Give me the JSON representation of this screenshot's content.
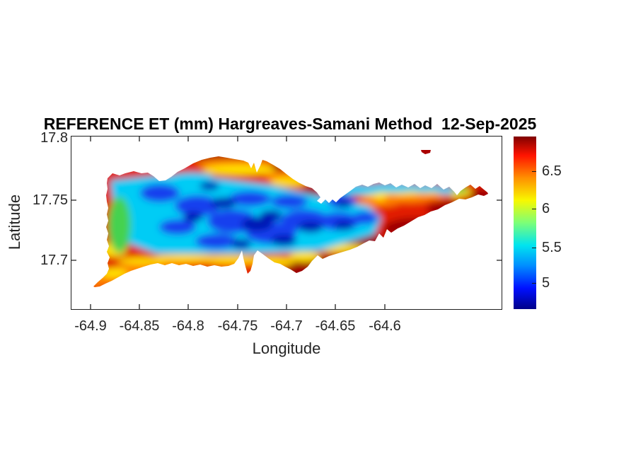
{
  "figure": {
    "title": "REFERENCE ET (mm) Hargreaves-Samani Method  12-Sep-2025",
    "background": "#ffffff"
  },
  "axes": {
    "xlabel": "Longitude",
    "ylabel": "Latitude",
    "x_tick_labels": [
      "-64.9",
      "-64.85",
      "-64.8",
      "-64.75",
      "-64.7",
      "-64.65",
      "-64.6"
    ],
    "y_tick_labels": [
      "17.8",
      "17.75",
      "17.7"
    ],
    "line_color": "#1f1f1f",
    "tick_label_color": "#262626"
  },
  "colorbar": {
    "tick_labels": [
      "6.5",
      "6",
      "5.5",
      "5"
    ],
    "colormap": "jet",
    "stops": [
      [
        "#7f0000",
        0
      ],
      [
        "#ff1400",
        11
      ],
      [
        "#ff9000",
        24
      ],
      [
        "#f8f800",
        37
      ],
      [
        "#7cff78",
        50
      ],
      [
        "#00e4ef",
        63
      ],
      [
        "#008cff",
        75
      ],
      [
        "#0010ff",
        88
      ],
      [
        "#000089",
        100
      ]
    ]
  },
  "chart_data": {
    "type": "heatmap",
    "title": "REFERENCE ET (mm) Hargreaves-Samani Method  12-Sep-2025",
    "xlabel": "Longitude",
    "ylabel": "Latitude",
    "units": "mm",
    "x_ticks": [
      -64.9,
      -64.85,
      -64.8,
      -64.75,
      -64.7,
      -64.65,
      -64.6
    ],
    "y_ticks": [
      17.8,
      17.75,
      17.7
    ],
    "xlim": [
      -64.92,
      -64.48
    ],
    "ylim": [
      17.655,
      17.8
    ],
    "colormap": "jet",
    "colorbar_ticks": [
      5,
      5.5,
      6,
      6.5
    ],
    "clim": [
      4.65,
      6.95
    ],
    "grid": false,
    "legend": "colorbar right",
    "features": [
      "Island-shaped data region (land only); surrounding ocean masked white",
      "Small separate islet north of the main island near (-64.62, 17.79) shaded dark red",
      "Low ET core about 4.7-5.3 mm (blue / dark blue) over the west-central interior",
      "Cyan-green transition band about 5.5-6 mm around the blue core and a green strip near the west end",
      "Narrow yellow-orange band about 6-6.3 mm between interior and coasts",
      "High ET about 6.5-7 mm (red / dark red) along the north ridge, the south coast and the entire eastern third tapering to the east tip",
      "Thin cyan band about 5.5 mm along the northeast shoreline broken by a yellow wedge"
    ]
  }
}
